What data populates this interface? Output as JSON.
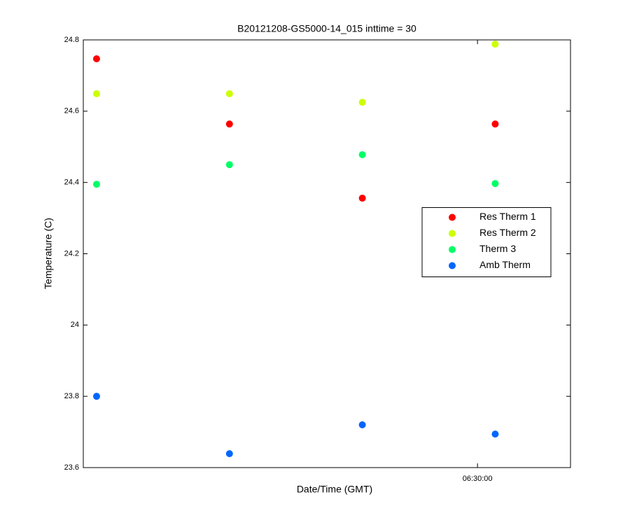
{
  "chart_data": {
    "type": "scatter",
    "title": "B20121208-GS5000-14_015 inttime = 30",
    "xlabel": "Date/Time (GMT)",
    "ylabel": "Temperature (C)",
    "x": [
      "06:27:08",
      "06:28:08",
      "06:29:08",
      "06:30:08"
    ],
    "xlim": [
      "06:27:02",
      "06:30:42"
    ],
    "xticks": [
      "06:30:00"
    ],
    "ylim": [
      23.6,
      24.8
    ],
    "yticks": [
      23.6,
      23.8,
      24,
      24.2,
      24.4,
      24.6,
      24.8
    ],
    "legend": "east",
    "series": [
      {
        "name": "Res Therm 1",
        "color": "#ff0000",
        "values": [
          24.747,
          24.564,
          24.356,
          24.564
        ]
      },
      {
        "name": "Res Therm 2",
        "color": "#ccff00",
        "values": [
          24.649,
          24.649,
          24.625,
          24.788
        ]
      },
      {
        "name": "Therm 3",
        "color": "#00ff66",
        "values": [
          24.395,
          24.45,
          24.478,
          24.397
        ]
      },
      {
        "name": "Amb Therm",
        "color": "#0066ff",
        "values": [
          23.8,
          23.639,
          23.72,
          23.694
        ]
      }
    ]
  }
}
